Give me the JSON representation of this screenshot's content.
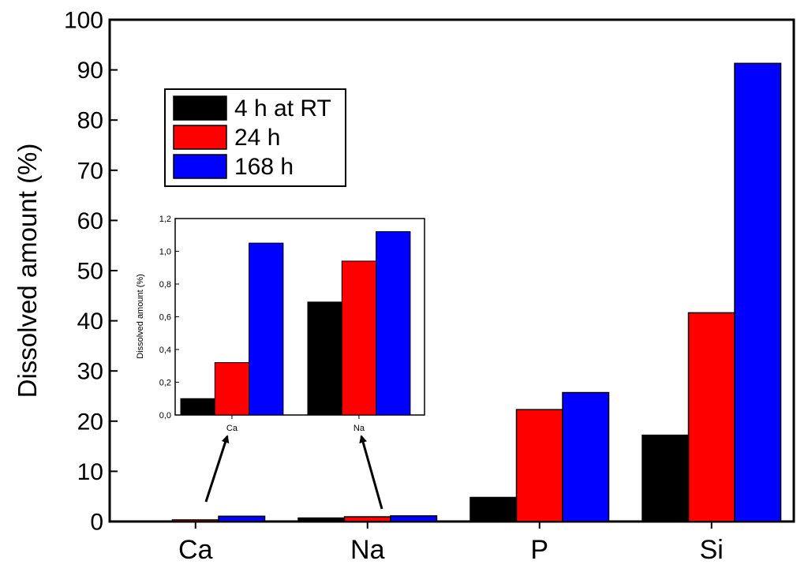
{
  "chart_data": [
    {
      "type": "bar",
      "ylabel": "Dissolved amount (%)",
      "categories": [
        "Ca",
        "Na",
        "P",
        "Si"
      ],
      "ylim": [
        0,
        100
      ],
      "yticks": [
        "0",
        "10",
        "20",
        "30",
        "40",
        "50",
        "60",
        "70",
        "80",
        "90",
        "100"
      ],
      "series": [
        {
          "name": "4 h at RT",
          "color": "#000000",
          "values": [
            0.1,
            0.7,
            4.8,
            17.2
          ]
        },
        {
          "name": "24 h",
          "color": "#ff0000",
          "values": [
            0.32,
            0.94,
            22.3,
            41.6
          ]
        },
        {
          "name": "168 h",
          "color": "#0000ff",
          "values": [
            1.05,
            1.12,
            25.7,
            91.3
          ]
        }
      ],
      "legend": "top-left"
    },
    {
      "type": "bar",
      "ylabel": "Dissolved amount (%)",
      "categories": [
        "Ca",
        "Na"
      ],
      "ylim": [
        0,
        1.2
      ],
      "yticks": [
        "0,0",
        "0,2",
        "0,4",
        "0,6",
        "0,8",
        "1,0",
        "1,2"
      ],
      "series": [
        {
          "color": "#000000",
          "values": [
            0.1,
            0.69
          ]
        },
        {
          "color": "#ff0000",
          "values": [
            0.32,
            0.94
          ]
        },
        {
          "color": "#0000ff",
          "values": [
            1.05,
            1.12
          ]
        }
      ]
    }
  ]
}
